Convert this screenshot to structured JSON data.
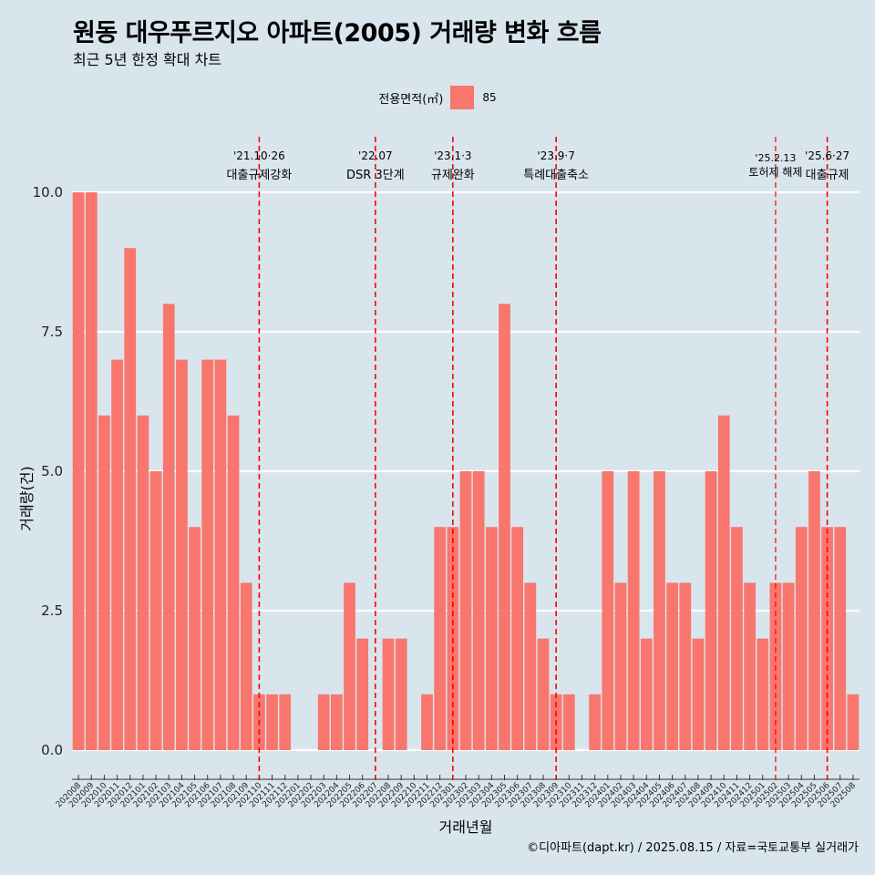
{
  "colors": {
    "background": "#d9e5ec",
    "bar": "#f8766d",
    "event_line": "#ff0000",
    "grid": "#ffffff"
  },
  "header": {
    "title": "원동 대우푸르지오 아파트(2005) 거래량 변화 흐름",
    "subtitle": "최근 5년 한정 확대 차트"
  },
  "legend": {
    "title": "전용면적(㎡)",
    "items": [
      {
        "label": "85",
        "color": "#f8766d"
      }
    ]
  },
  "caption": "©디아파트(dapt.kr) / 2025.08.15 / 자료=국토교통부 실거래가",
  "chart_data": {
    "type": "bar",
    "xlabel": "거래년월",
    "ylabel": "거래량(건)",
    "ylim": [
      0,
      10
    ],
    "yticks": [
      "0.0",
      "2.5",
      "5.0",
      "7.5",
      "10.0"
    ],
    "ytick_values": [
      0,
      2.5,
      5,
      7.5,
      10
    ],
    "grid": "horizontal",
    "legend_position": "top",
    "categories": [
      "202008",
      "202009",
      "202010",
      "202011",
      "202012",
      "202101",
      "202102",
      "202103",
      "202104",
      "202105",
      "202106",
      "202107",
      "202108",
      "202109",
      "202110",
      "202111",
      "202112",
      "202201",
      "202202",
      "202203",
      "202204",
      "202205",
      "202206",
      "202207",
      "202208",
      "202209",
      "202210",
      "202211",
      "202212",
      "202301",
      "202302",
      "202303",
      "202304",
      "202305",
      "202306",
      "202307",
      "202308",
      "202309",
      "202310",
      "202311",
      "202312",
      "202401",
      "202402",
      "202403",
      "202404",
      "202405",
      "202406",
      "202407",
      "202408",
      "202409",
      "202410",
      "202411",
      "202412",
      "202501",
      "202502",
      "202503",
      "202504",
      "202505",
      "202506",
      "202507",
      "202508"
    ],
    "series": [
      {
        "name": "85",
        "values": [
          10,
          10,
          6,
          7,
          9,
          6,
          5,
          8,
          7,
          4,
          7,
          7,
          6,
          3,
          1,
          1,
          1,
          0,
          0,
          1,
          1,
          3,
          2,
          0,
          2,
          2,
          0,
          1,
          4,
          4,
          5,
          5,
          4,
          8,
          4,
          3,
          2,
          1,
          1,
          0,
          1,
          5,
          3,
          5,
          2,
          5,
          3,
          3,
          2,
          5,
          6,
          4,
          3,
          2,
          3,
          3,
          4,
          5,
          4,
          4,
          1
        ]
      }
    ],
    "events": [
      {
        "date": "'21.10·26",
        "label": "대출규제강화",
        "category": "202110"
      },
      {
        "date": "'22.07",
        "label": "DSR 3단계",
        "category": "202207"
      },
      {
        "date": "'23.1·3",
        "label": "규제완화",
        "category": "202301"
      },
      {
        "date": "'23.9·7",
        "label": "특례대출축소",
        "category": "202309"
      },
      {
        "date": "'25.2.13",
        "label": "토허제 해제",
        "category": "202502"
      },
      {
        "date": "'25.6·27",
        "label": "대출규제",
        "category": "202506"
      }
    ]
  }
}
